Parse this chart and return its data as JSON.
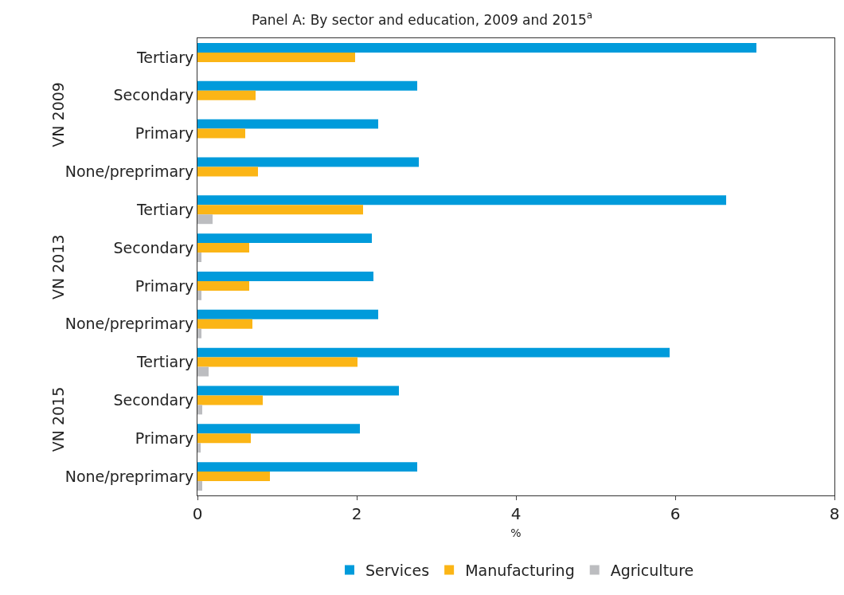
{
  "chart_data": {
    "type": "bar",
    "orientation": "horizontal",
    "title": "Panel A: By sector and education, 2009 and 2015$^{a}$",
    "xlabel": "%",
    "categories": [
      "Tertiary",
      "Secondary",
      "Primary",
      "None/preprimary",
      "Tertiary",
      "Secondary",
      "Primary",
      "None/preprimary",
      "Tertiary",
      "Secondary",
      "Primary",
      "None/preprimary"
    ],
    "annotations": [
      "VN 2009",
      "VN 2013",
      "VN 2015"
    ],
    "series": [
      {
        "name": "Services",
        "color": "#009bdb",
        "values": [
          7.02,
          2.76,
          2.27,
          2.78,
          6.64,
          2.19,
          2.21,
          2.27,
          5.93,
          2.53,
          2.04,
          2.76
        ]
      },
      {
        "name": "Manufacturing",
        "color": "#fbb516",
        "values": [
          1.98,
          0.73,
          0.6,
          0.76,
          2.08,
          0.65,
          0.65,
          0.69,
          2.01,
          0.82,
          0.67,
          0.91
        ]
      },
      {
        "name": "Agriculture",
        "color": "#bcbdc0",
        "values": [
          null,
          null,
          null,
          null,
          0.19,
          0.05,
          0.05,
          0.05,
          0.14,
          0.06,
          0.04,
          0.06
        ]
      }
    ],
    "xlim": [
      0,
      8
    ],
    "xticks": [
      0,
      2,
      4,
      6,
      8
    ],
    "grid": false,
    "legend": "bottom"
  }
}
